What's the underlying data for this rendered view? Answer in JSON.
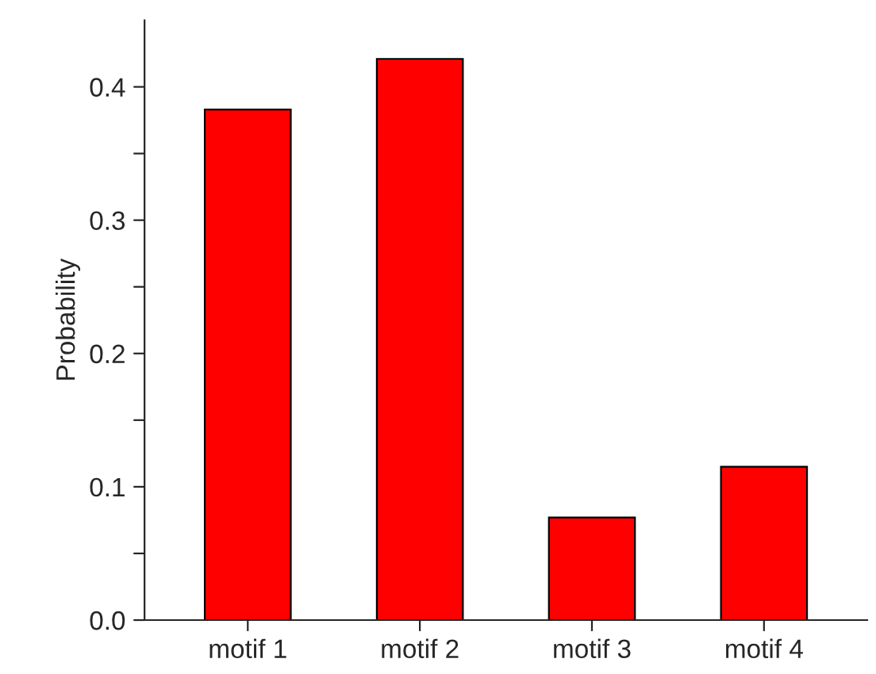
{
  "chart_data": {
    "type": "bar",
    "ylabel": "Probability",
    "categories": [
      "motif 1",
      "motif 2",
      "motif 3",
      "motif 4"
    ],
    "values": [
      0.383,
      0.421,
      0.077,
      0.115
    ],
    "color": "#ff0000",
    "ylim": [
      0,
      0.45
    ],
    "yticks": [
      {
        "value": 0,
        "label": "0.0"
      },
      {
        "value": 0.05,
        "label": null
      },
      {
        "value": 0.1,
        "label": "0.1"
      },
      {
        "value": 0.15,
        "label": null
      },
      {
        "value": 0.2,
        "label": "0.2"
      },
      {
        "value": 0.25,
        "label": null
      },
      {
        "value": 0.3,
        "label": "0.3"
      },
      {
        "value": 0.35,
        "label": null
      },
      {
        "value": 0.4,
        "label": "0.4"
      }
    ],
    "grid": false,
    "legend": false
  }
}
